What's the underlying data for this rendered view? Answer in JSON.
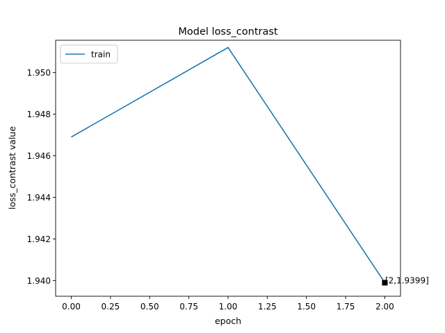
{
  "chart_data": {
    "type": "line",
    "title": "Model loss_contrast",
    "xlabel": "epoch",
    "ylabel": "loss_contrast value",
    "xlim": [
      -0.1,
      2.1
    ],
    "ylim": [
      1.93925,
      1.95155
    ],
    "x_ticks": [
      0.0,
      0.25,
      0.5,
      0.75,
      1.0,
      1.25,
      1.5,
      1.75,
      2.0
    ],
    "x_tick_labels": [
      "0.00",
      "0.25",
      "0.50",
      "0.75",
      "1.00",
      "1.25",
      "1.50",
      "1.75",
      "2.00"
    ],
    "y_ticks": [
      1.94,
      1.942,
      1.944,
      1.946,
      1.948,
      1.95
    ],
    "y_tick_labels": [
      "1.940",
      "1.942",
      "1.944",
      "1.946",
      "1.948",
      "1.950"
    ],
    "grid": false,
    "legend_position": "upper-left",
    "series": [
      {
        "name": "train",
        "color": "#1f77b4",
        "x": [
          0,
          1,
          2
        ],
        "y": [
          1.9469,
          1.9512,
          1.9399
        ]
      }
    ],
    "annotations": [
      {
        "x": 2,
        "y": 1.9399,
        "text": "[2,1.9399]",
        "marker": "square",
        "marker_color": "#000000"
      }
    ]
  }
}
